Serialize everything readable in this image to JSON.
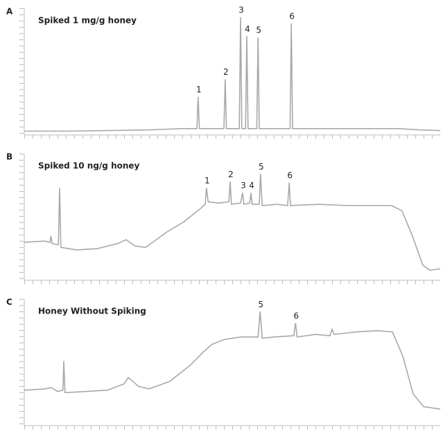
{
  "chart_data": [
    {
      "type": "line",
      "panel": "A",
      "title": "Spiked 1 mg/g honey",
      "color": "#a8a8a8",
      "xlim": [
        0,
        100
      ],
      "ylim": [
        0,
        100
      ],
      "x": [
        0,
        5,
        10,
        20,
        30,
        38,
        41.5,
        41.8,
        42.1,
        45,
        48,
        48.3,
        48.6,
        51.7,
        52,
        52.3,
        53.2,
        53.5,
        53.8,
        55.9,
        56.2,
        56.5,
        60,
        63.9,
        64.2,
        64.5,
        70,
        80,
        90,
        95,
        100
      ],
      "values": [
        3,
        3,
        3,
        3.5,
        4,
        5,
        5,
        30,
        5,
        5,
        5,
        44,
        5,
        5,
        93,
        5,
        5,
        78,
        5,
        5,
        77,
        5,
        5,
        5,
        88,
        5,
        5,
        5,
        5,
        4,
        3.5
      ],
      "peaks": [
        {
          "label": "1",
          "x": 41.8
        },
        {
          "label": "2",
          "x": 48.3
        },
        {
          "label": "3",
          "x": 52
        },
        {
          "label": "4",
          "x": 53.5
        },
        {
          "label": "5",
          "x": 56.2
        },
        {
          "label": "6",
          "x": 64.2
        }
      ]
    },
    {
      "type": "line",
      "panel": "B",
      "title": "Spiked 10 ng/g honey",
      "color": "#a8a8a8",
      "xlim": [
        0,
        100
      ],
      "ylim": [
        0,
        100
      ],
      "x": [
        0,
        5,
        6.2,
        6.4,
        6.7,
        8.2,
        8.5,
        8.8,
        12.5,
        17.5,
        22.5,
        24.5,
        26.7,
        29.2,
        34.2,
        38.3,
        42.5,
        43.5,
        43.8,
        44.2,
        46.7,
        49.2,
        49.5,
        49.8,
        52,
        52.5,
        52.8,
        54.2,
        54.5,
        54.8,
        56.5,
        56.8,
        57.2,
        60.8,
        63.3,
        63.7,
        64,
        70.8,
        77.5,
        84.2,
        88.3,
        90.8,
        93.3,
        95.8,
        97.5,
        100
      ],
      "values": [
        30,
        31,
        30,
        35,
        29,
        28,
        73,
        26,
        24,
        25,
        29,
        32,
        27,
        26,
        38,
        46,
        57,
        60,
        73,
        62,
        61,
        62,
        78,
        60,
        61,
        69,
        60,
        61,
        69,
        60,
        60,
        84,
        59,
        60,
        59,
        77,
        59,
        60,
        59,
        59,
        59,
        55,
        35,
        12,
        8,
        9
      ],
      "peaks": [
        {
          "label": "1",
          "x": 43.8
        },
        {
          "label": "2",
          "x": 49.5
        },
        {
          "label": "3",
          "x": 52.5
        },
        {
          "label": "4",
          "x": 54.5
        },
        {
          "label": "5",
          "x": 56.8
        },
        {
          "label": "6",
          "x": 63.7
        }
      ]
    },
    {
      "type": "line",
      "panel": "C",
      "title": "Honey Without Spiking",
      "color": "#a8a8a8",
      "xlim": [
        0,
        100
      ],
      "ylim": [
        0,
        100
      ],
      "x": [
        0,
        5,
        6.5,
        8,
        9.3,
        9.5,
        9.8,
        15,
        20,
        24,
        25,
        27.5,
        30,
        35,
        40,
        43,
        45,
        48,
        52,
        56.2,
        56.7,
        57.2,
        60,
        64.8,
        65.2,
        65.6,
        70,
        73.5,
        74,
        74.5,
        80,
        85,
        88.5,
        91,
        93.5,
        96,
        100
      ],
      "values": [
        28,
        29,
        30,
        27,
        28,
        51,
        26,
        27,
        28,
        33,
        38,
        31,
        29,
        35,
        48,
        58,
        64,
        68,
        70,
        70,
        90,
        69,
        70,
        71,
        81,
        70,
        72,
        71,
        76,
        72,
        74,
        75,
        74,
        55,
        25,
        15,
        13
      ],
      "peaks": [
        {
          "label": "5",
          "x": 56.7
        },
        {
          "label": "6",
          "x": 65.2
        }
      ]
    }
  ]
}
